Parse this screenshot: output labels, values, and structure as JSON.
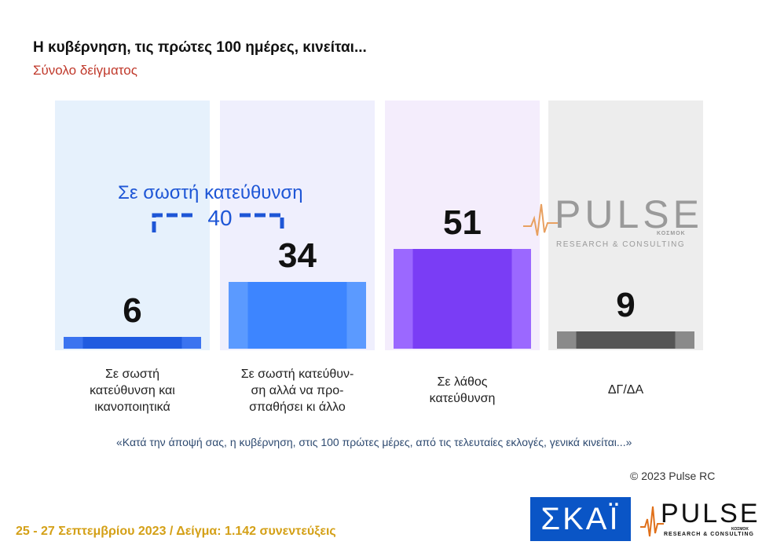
{
  "title": "Η κυβέρνηση, τις πρώτες 100 ημέρες, κινείται...",
  "subtitle": "Σύνολο δείγματος",
  "chart_data": {
    "type": "bar",
    "categories": [
      "Σε σωστή κατεύθυνση και ικανοποιητικά",
      "Σε σωστή κατεύθυν-ση αλλά να προ-σπαθήσει κι άλλο",
      "Σε λάθος κατεύθυνση",
      "ΔΓ/ΔΑ"
    ],
    "category_lines": [
      [
        "Σε σωστή",
        "κατεύθυνση και",
        "ικανοποιητικά"
      ],
      [
        "Σε σωστή κατεύθυν-",
        "ση αλλά να προ-",
        "σπαθήσει κι άλλο"
      ],
      [
        "Σε λάθος",
        "κατεύθυνση"
      ],
      [
        "ΔΓ/ΔΑ"
      ]
    ],
    "values": [
      6,
      34,
      51,
      9
    ],
    "value_labels": [
      "6",
      "34",
      "51",
      "9"
    ],
    "ylim": [
      0,
      100
    ],
    "group_annotation": {
      "label": "Σε σωστή κατεύθυνση",
      "value": "40",
      "covers": [
        0,
        1
      ]
    },
    "colors": {
      "bars": [
        "#1f5be0",
        "#3d85ff",
        "#7a3df5",
        "#555555"
      ],
      "bar_edges": [
        "#3b74f0",
        "#5b9aff",
        "#9b68ff",
        "#8a8a8a"
      ],
      "panels": [
        "#e6f1fc",
        "#efeffd",
        "#f4edfc",
        "#ededed"
      ]
    }
  },
  "watermark": {
    "brand": "PULSE",
    "tagline": "RESEARCH & CONSULTING",
    "small": "ΚΟΣΜΟΚ"
  },
  "question": "«Κατά την άποψή σας, η κυβέρνηση, στις 100 πρώτες μέρες, από τις τελευταίες εκλογές, γενικά κινείται...»",
  "copyright": "© 2023 Pulse RC",
  "footer": "25 - 27  Σεπτεμβρίου  2023  /  Δείγμα:  1.142 συνεντεύξεις",
  "logos": {
    "skai": "ΣΚΑΪ",
    "pulse": "PULSE",
    "pulse_tagline": "RESEARCH & CONSULTING",
    "pulse_small": "ΚΟΣΜΟΚ"
  }
}
